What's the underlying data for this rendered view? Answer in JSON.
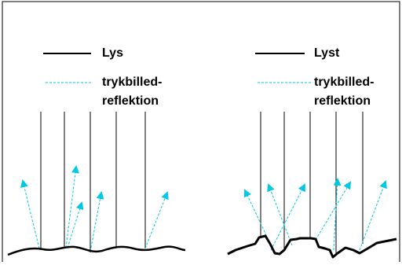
{
  "panels": [
    {
      "legend": {
        "light": "Lys",
        "reflection": [
          "trykbilled-",
          "reflektion"
        ]
      }
    },
    {
      "legend": {
        "light": "Lyst",
        "reflection": [
          "trykbilled-",
          "reflektion"
        ]
      }
    }
  ]
}
